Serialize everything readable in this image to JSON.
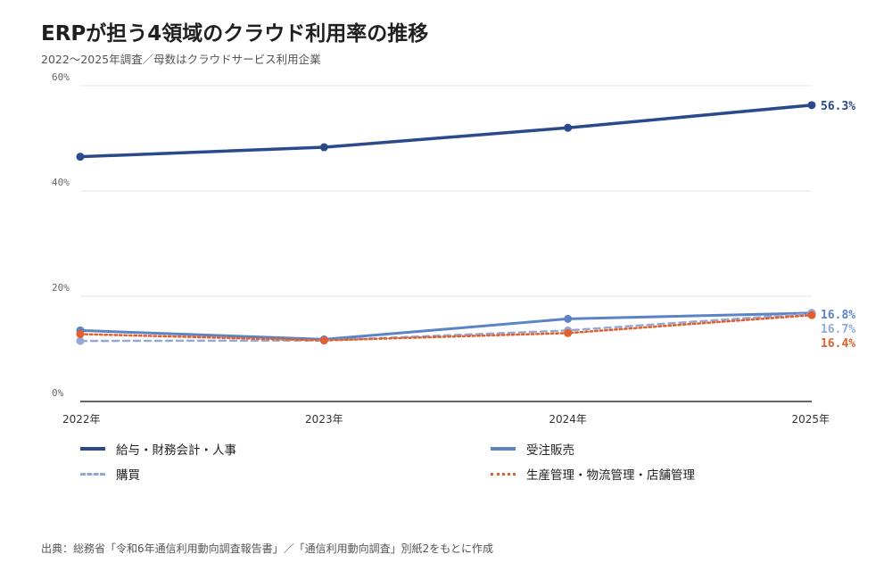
{
  "header": {
    "title": "ERPが担う4領域のクラウド利用率の推移",
    "subtitle": "2022〜2025年調査／母数はクラウドサービス利用企業"
  },
  "footer": {
    "source": "出典：総務省「令和6年通信利用動向調査報告書」／「通信利用動向調査」別紙2をもとに作成"
  },
  "chart_data": {
    "type": "line",
    "title": "ERPが担う4領域のクラウド利用率の推移",
    "subtitle": "2022〜2025年調査／母数はクラウドサービス利用企業",
    "x": [
      "2022年",
      "2023年",
      "2024年",
      "2025年"
    ],
    "ylim": [
      0,
      60
    ],
    "yticks": [
      0,
      20,
      40,
      60
    ],
    "ytick_labels": [
      "0%",
      "20%",
      "40%",
      "60%"
    ],
    "grid": "horizontal",
    "legend_position": "bottom",
    "series": [
      {
        "name": "給与・財務会計・人事",
        "values": [
          46.5,
          48.3,
          52.0,
          56.3
        ],
        "end_label": "56.3%",
        "color": "#2b4a8b",
        "style": "solid"
      },
      {
        "name": "受注販売",
        "values": [
          13.5,
          11.8,
          15.7,
          16.8
        ],
        "end_label": "16.8%",
        "color": "#5b84c4",
        "style": "solid"
      },
      {
        "name": "購買",
        "values": [
          11.5,
          11.6,
          13.5,
          16.7
        ],
        "end_label": "16.7%",
        "color": "#95a9d6",
        "style": "dashed"
      },
      {
        "name": "生産管理・物流管理・店舗管理",
        "values": [
          12.8,
          11.6,
          13.0,
          16.4
        ],
        "end_label": "16.4%",
        "color": "#e05f2c",
        "style": "dotted"
      }
    ]
  }
}
